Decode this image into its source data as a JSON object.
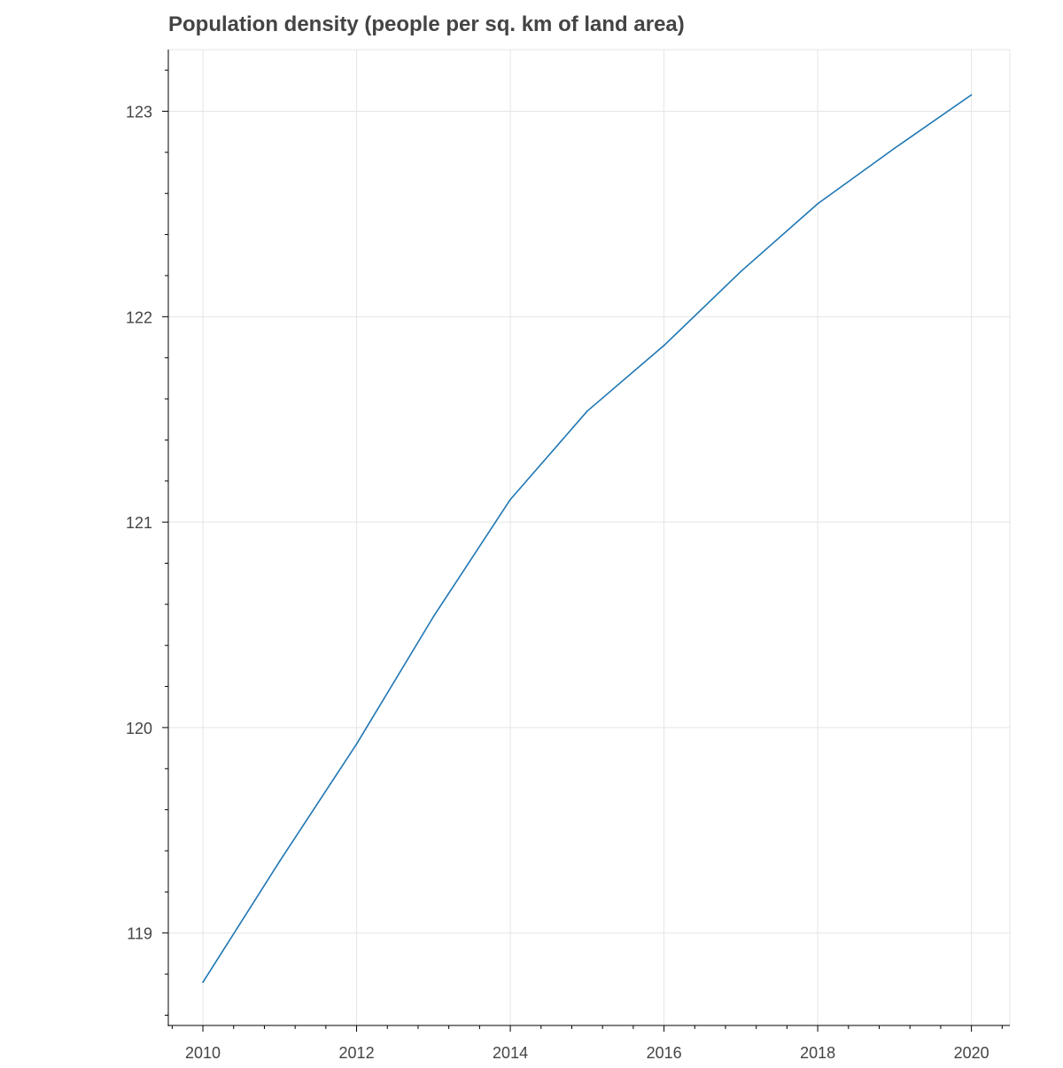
{
  "chart_data": {
    "type": "line",
    "title": "Population density (people per sq. km of land area)",
    "xlabel": "",
    "ylabel": "",
    "x": [
      2010,
      2011,
      2012,
      2013,
      2014,
      2015,
      2016,
      2017,
      2018,
      2019,
      2020
    ],
    "series": [
      {
        "values": [
          118.76,
          119.35,
          119.92,
          120.54,
          121.11,
          121.54,
          121.86,
          122.22,
          122.55,
          122.82,
          123.08
        ],
        "color": "#1f77b4"
      }
    ],
    "xlim": [
      2009.55,
      2020.5
    ],
    "ylim": [
      118.55,
      123.3
    ],
    "x_ticks": [
      2010,
      2012,
      2014,
      2016,
      2018,
      2020
    ],
    "x_tick_labels": [
      "2010",
      "2012",
      "2014",
      "2016",
      "2018",
      "2020"
    ],
    "y_ticks": [
      119,
      120,
      121,
      122,
      123
    ],
    "y_tick_labels": [
      "119",
      "120",
      "121",
      "122",
      "123"
    ],
    "grid": true,
    "legend": "none"
  }
}
